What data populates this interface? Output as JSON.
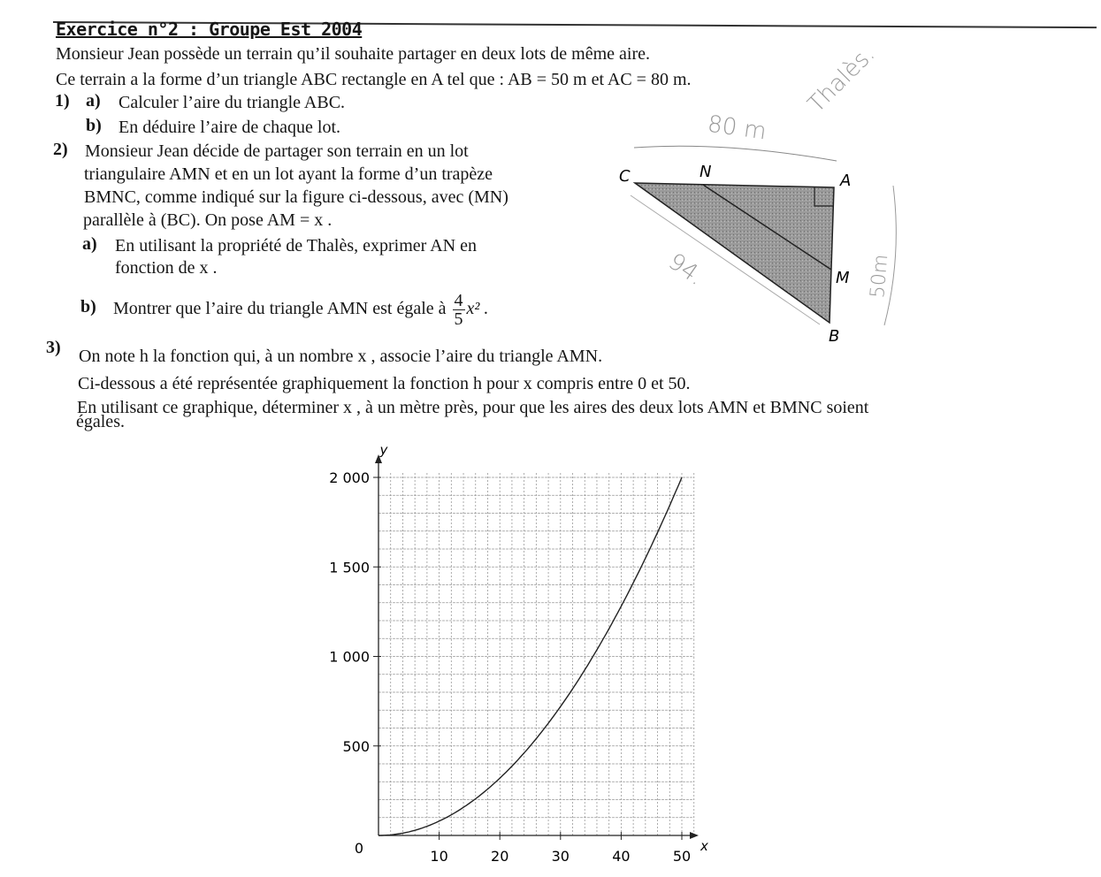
{
  "exercise": {
    "title": "Exercice n°2 : Groupe Est 2004",
    "intro_1": "Monsieur Jean possède un terrain qu’il souhaite partager en deux lots de même aire.",
    "intro_2": "Ce terrain a la forme d’un triangle ABC rectangle en A tel que : AB = 50 m et AC = 80 m.",
    "q1_num": "1)",
    "q1a_label": "a)",
    "q1a": "Calculer l’aire du triangle ABC.",
    "q1b_label": "b)",
    "q1b": "En déduire l’aire de chaque lot.",
    "q2_num": "2)",
    "q2_lines": [
      "Monsieur Jean décide de partager son terrain en un lot",
      "triangulaire AMN et en un lot ayant la forme d’un trapèze",
      "BMNC, comme indiqué sur la figure ci-dessous, avec (MN)",
      "parallèle à (BC). On pose AM = x ."
    ],
    "q2a_label": "a)",
    "q2a_lines": [
      "En utilisant la propriété de Thalès, exprimer AN en",
      "fonction de x ."
    ],
    "q2b_label": "b)",
    "q2b_text": "Montrer que l’aire du triangle AMN est égale à",
    "q2b_frac_num": "4",
    "q2b_frac_den": "5",
    "q2b_after": "x² .",
    "q3_num": "3)",
    "q3_lines": [
      "On note h la fonction qui, à un nombre x , associe l’aire du triangle AMN.",
      "Ci-dessous a été représentée graphiquement la fonction h pour x compris entre 0 et 50.",
      "En utilisant ce graphique, déterminer x , à un mètre près, pour que les aires des deux lots AMN et BMNC soient",
      "égales."
    ]
  },
  "figure": {
    "labels": {
      "C": "C",
      "N": "N",
      "A": "A",
      "M": "M",
      "B": "B"
    },
    "fill_color": "#8c8c8c",
    "handwritten": {
      "ac": "80 m",
      "note": "Thalès.",
      "bc": "94.",
      "ab": "50m"
    }
  },
  "chart_data": {
    "type": "line",
    "title": "",
    "xlabel": "x",
    "ylabel": "y",
    "xlim": [
      0,
      52
    ],
    "ylim": [
      0,
      2000
    ],
    "x_ticks": [
      "10",
      "20",
      "30",
      "40",
      "50"
    ],
    "y_ticks": [
      "2 000",
      "1 500",
      "1 000",
      "500"
    ],
    "origin_label": "0",
    "grid": true,
    "series": [
      {
        "x": [
          0,
          5,
          10,
          15,
          20,
          25,
          30,
          35,
          40,
          45,
          50
        ],
        "y": [
          0,
          20,
          80,
          180,
          320,
          500,
          720,
          980,
          1280,
          1620,
          2000
        ]
      }
    ]
  }
}
